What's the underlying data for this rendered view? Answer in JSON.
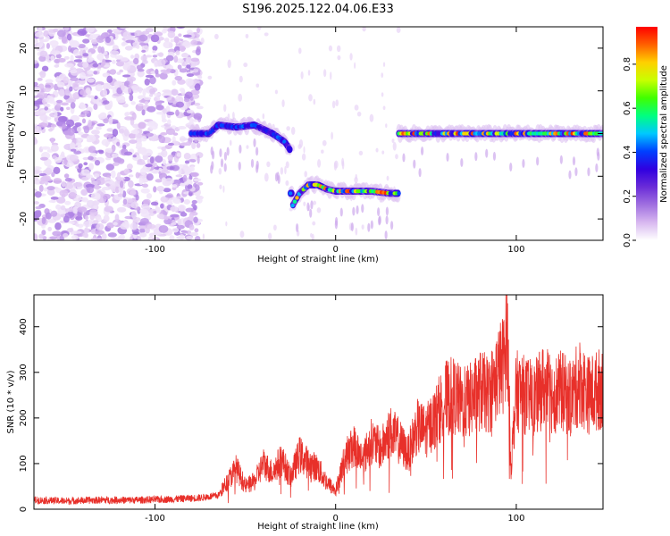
{
  "figure": {
    "title": "S196.2025.122.04.06.E33"
  },
  "chart_data": [
    {
      "type": "heatmap",
      "xlabel": "Height of straight line (km)",
      "ylabel": "Frequency (Hz)",
      "xlim": [
        -167,
        148
      ],
      "ylim": [
        -25,
        25
      ],
      "xticks": [
        -100,
        0,
        100
      ],
      "yticks": [
        -20,
        -10,
        0,
        10,
        20
      ],
      "colorbar": {
        "label": "Normalized spectral amplitude",
        "range": [
          0,
          0.97
        ],
        "ticks": [
          0,
          0.2,
          0.4,
          0.6,
          0.8
        ],
        "colormap": [
          "#ffffff",
          "#d8b8f0",
          "#a070e0",
          "#6a2cd8",
          "#3000e0",
          "#0040ff",
          "#00c8ff",
          "#00ff80",
          "#40ff00",
          "#c8ff00",
          "#ffd000",
          "#ff6000",
          "#ff0000"
        ]
      },
      "segments": [
        {
          "x_range": [
            -80,
            -25
          ],
          "freq_track": [
            [
              -80,
              0
            ],
            [
              -70,
              0
            ],
            [
              -65,
              2
            ],
            [
              -55,
              1.5
            ],
            [
              -45,
              2
            ],
            [
              -35,
              0
            ],
            [
              -28,
              -2
            ],
            [
              -25,
              -4
            ]
          ],
          "peak_amplitude": 0.45
        },
        {
          "x_range": [
            -25,
            35
          ],
          "freq_track": [
            [
              -24,
              -17
            ],
            [
              -20,
              -14
            ],
            [
              -15,
              -12
            ],
            [
              -10,
              -12
            ],
            [
              -5,
              -13
            ],
            [
              0,
              -13.5
            ],
            [
              10,
              -13.5
            ],
            [
              20,
              -13.5
            ],
            [
              30,
              -14
            ],
            [
              35,
              -14
            ]
          ],
          "peak_amplitude": 0.97
        },
        {
          "x_range": [
            35,
            148
          ],
          "freq_track": [
            [
              36,
              0
            ],
            [
              50,
              0
            ],
            [
              60,
              0
            ],
            [
              80,
              0
            ],
            [
              100,
              0
            ],
            [
              120,
              0
            ],
            [
              140,
              0
            ],
            [
              148,
              0
            ]
          ],
          "peak_amplitude": 0.97
        }
      ],
      "noise_region": {
        "x_range": [
          -167,
          -75
        ],
        "description": "scattered low-amplitude broadband energy"
      }
    },
    {
      "type": "line",
      "xlabel": "Height of straight line (km)",
      "ylabel": "SNR (10 * v/v)",
      "xlim": [
        -167,
        148
      ],
      "ylim": [
        0,
        470
      ],
      "xticks": [
        -100,
        0,
        100
      ],
      "yticks": [
        0,
        100,
        200,
        300,
        400
      ],
      "color": "#e8302a",
      "series": [
        {
          "x": [
            -167,
            -150,
            -130,
            -110,
            -90,
            -75,
            -65,
            -55,
            -50,
            -45,
            -40,
            -35,
            -30,
            -25,
            -20,
            -15,
            -10,
            -5,
            0,
            5,
            10,
            15,
            20,
            25,
            30,
            35,
            40,
            45,
            50,
            55,
            60,
            65,
            70,
            75,
            80,
            85,
            88,
            90,
            93,
            95,
            97,
            100,
            105,
            110,
            115,
            120,
            125,
            130,
            135,
            140,
            145,
            148
          ],
          "y": [
            20,
            18,
            20,
            20,
            22,
            25,
            30,
            90,
            50,
            60,
            100,
            80,
            110,
            70,
            120,
            100,
            90,
            60,
            40,
            110,
            140,
            110,
            150,
            130,
            170,
            150,
            120,
            180,
            170,
            200,
            240,
            250,
            230,
            240,
            260,
            250,
            280,
            300,
            320,
            400,
            90,
            260,
            250,
            240,
            270,
            250,
            260,
            240,
            280,
            250,
            260,
            270
          ]
        }
      ]
    }
  ]
}
